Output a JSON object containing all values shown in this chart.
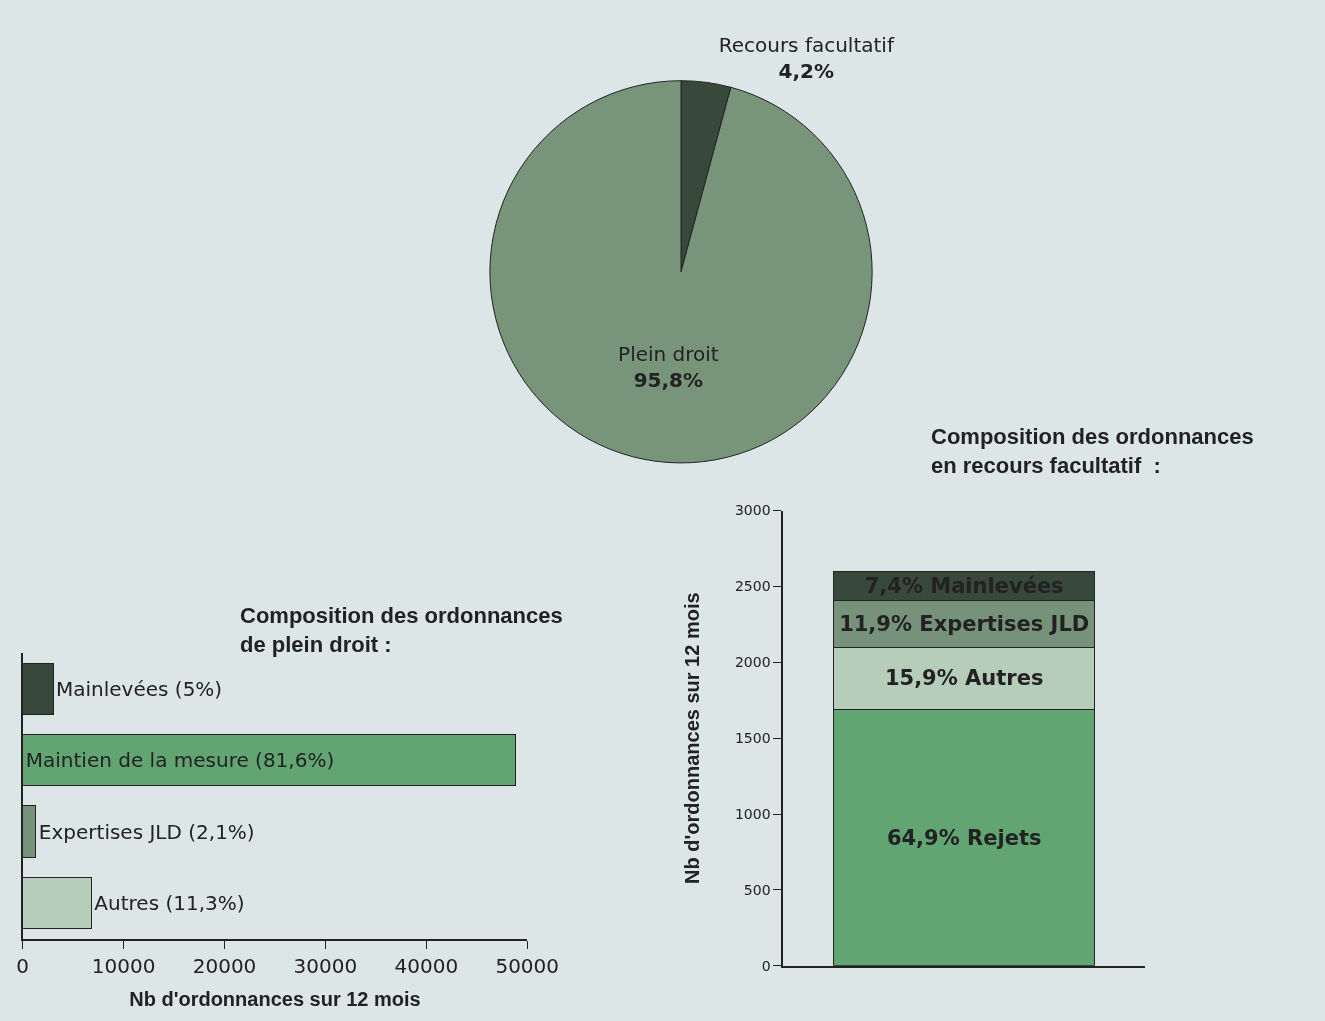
{
  "chart_data": [
    {
      "type": "pie",
      "categories": [
        "Recours facultatif",
        "Plein droit"
      ],
      "values": [
        4.2,
        95.8
      ],
      "colors": [
        "#38493c",
        "#78957b"
      ],
      "value_labels": [
        "4,2%",
        "95,8%"
      ]
    },
    {
      "type": "bar",
      "orientation": "horizontal",
      "title": "Composition des ordonnances\nde plein droit :",
      "xlabel": "Nb d'ordonnances sur 12 mois",
      "categories": [
        "Mainlevées (5%)",
        "Maintien de la mesure (81,6%)",
        "Expertises JLD (2,1%)",
        "Autres (11,3%)"
      ],
      "values": [
        3000,
        48800,
        1300,
        6800
      ],
      "colors": [
        "#38493c",
        "#62a572",
        "#77927b",
        "#b5cdb9"
      ],
      "xlim": [
        0,
        50000
      ],
      "xticks": [
        0,
        10000,
        20000,
        30000,
        40000,
        50000
      ],
      "tick_labels": "x",
      "grid": false,
      "legend": false
    },
    {
      "type": "bar",
      "stacked": true,
      "title": "Composition des ordonnances\nen recours facultatif  :",
      "ylabel": "Nb d'ordonnances sur 12 mois",
      "categories": [
        null
      ],
      "ylim": [
        0,
        3000
      ],
      "yticks": [
        0,
        500,
        1000,
        1500,
        2000,
        2500,
        3000
      ],
      "tick_labels": "y",
      "grid": false,
      "legend": false,
      "series": [
        {
          "name": "64,9% Rejets",
          "color": "#62a572",
          "values": [
            1687
          ]
        },
        {
          "name": "15,9% Autres",
          "color": "#b5cdb9",
          "values": [
            413
          ]
        },
        {
          "name": "11,9% Expertises JLD",
          "color": "#77927b",
          "values": [
            309
          ]
        },
        {
          "name": "7,4% Mainlevées",
          "color": "#38493c",
          "values": [
            192
          ]
        }
      ]
    }
  ]
}
